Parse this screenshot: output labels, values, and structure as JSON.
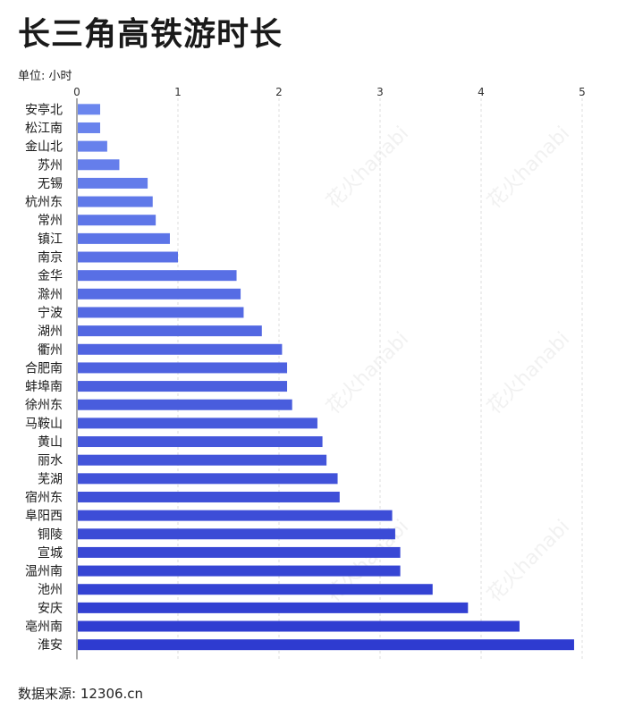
{
  "title": "长三角高铁游时长",
  "unit_label": "单位: 小时",
  "source": "数据来源: 12306.cn",
  "watermark_text": "花火hanabi",
  "colors": {
    "bar_top": "#6b86ee",
    "bar_bottom": "#2e3bd0",
    "grid": "#dddddd",
    "axis": "#555555"
  },
  "chart_data": {
    "type": "bar",
    "orientation": "horizontal",
    "xlim": [
      0,
      5
    ],
    "xticks": [
      0,
      1,
      2,
      3,
      4,
      5
    ],
    "grid": true,
    "categories": [
      "安亭北",
      "松江南",
      "金山北",
      "苏州",
      "无锡",
      "杭州东",
      "常州",
      "镇江",
      "南京",
      "金华",
      "滁州",
      "宁波",
      "湖州",
      "衢州",
      "合肥南",
      "蚌埠南",
      "徐州东",
      "马鞍山",
      "黄山",
      "丽水",
      "芜湖",
      "宿州东",
      "阜阳西",
      "铜陵",
      "宣城",
      "温州南",
      "池州",
      "安庆",
      "亳州南",
      "淮安"
    ],
    "values": [
      0.23,
      0.23,
      0.3,
      0.42,
      0.7,
      0.75,
      0.78,
      0.92,
      1.0,
      1.58,
      1.62,
      1.65,
      1.83,
      2.03,
      2.08,
      2.08,
      2.13,
      2.38,
      2.43,
      2.47,
      2.58,
      2.6,
      3.12,
      3.15,
      3.2,
      3.2,
      3.52,
      3.87,
      4.38,
      4.92
    ]
  }
}
